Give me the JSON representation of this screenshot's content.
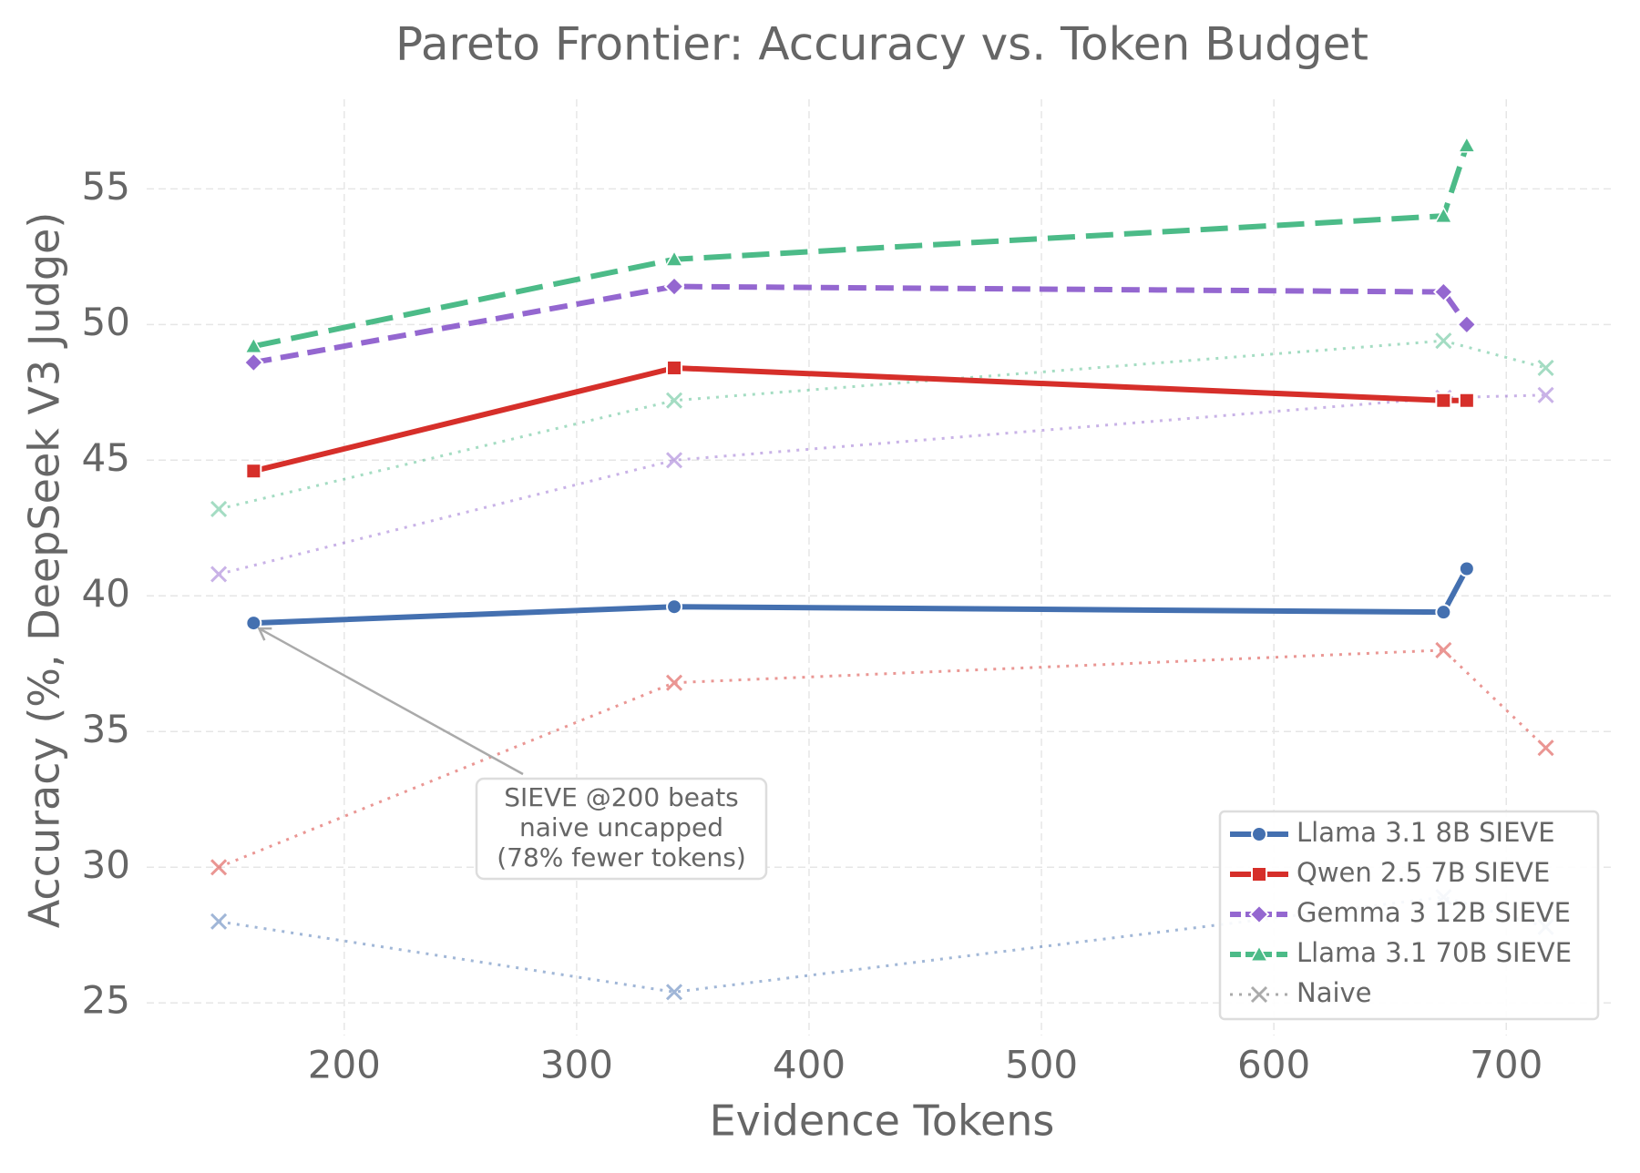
{
  "chart_data": {
    "type": "line",
    "title": "Pareto Frontier: Accuracy vs. Token Budget",
    "x_label": "Evidence Tokens",
    "y_label": "Accuracy (%, DeepSeek V3 Judge)",
    "xlim": [
      115,
      745
    ],
    "ylim": [
      23.8,
      58.3
    ],
    "xticks": [
      200,
      300,
      400,
      500,
      600,
      700
    ],
    "yticks": [
      25,
      30,
      35,
      40,
      45,
      50,
      55
    ],
    "grid": true,
    "legend_loc": "lower right",
    "x": [
      161,
      342,
      673,
      683
    ],
    "series": [
      {
        "name": "Llama 3.1 8B SIEVE",
        "color": "#4470b0",
        "linestyle": "solid",
        "marker": "o",
        "values": [
          39.0,
          39.6,
          39.4,
          41.0
        ]
      },
      {
        "name": "Qwen 2.5 7B SIEVE",
        "color": "#d62f2a",
        "linestyle": "solid",
        "marker": "s",
        "values": [
          44.6,
          48.4,
          47.2,
          47.2
        ]
      },
      {
        "name": "Gemma 3 12B SIEVE",
        "color": "#9467d0",
        "linestyle": "dashed",
        "marker": "D",
        "values": [
          48.6,
          51.4,
          51.2,
          50.0
        ]
      },
      {
        "name": "Llama 3.1 70B SIEVE",
        "color": "#4cbb88",
        "linestyle": "longdash",
        "marker": "^",
        "values": [
          49.2,
          52.4,
          54.0,
          56.6
        ]
      }
    ],
    "naive": {
      "name": "Naive",
      "legend_color": "#aaaaaa",
      "linestyle": "dotted",
      "marker": "x",
      "x": [
        146,
        342,
        673,
        717
      ],
      "series": [
        {
          "color": "#4470b0",
          "values": [
            28.0,
            25.4,
            28.9,
            27.8
          ]
        },
        {
          "color": "#d62f2a",
          "values": [
            30.0,
            36.8,
            38.0,
            34.4
          ]
        },
        {
          "color": "#9467d0",
          "values": [
            40.8,
            45.0,
            47.3,
            47.4
          ]
        },
        {
          "color": "#4cbb88",
          "values": [
            43.2,
            47.2,
            49.4,
            48.4
          ]
        }
      ]
    },
    "annotation": {
      "lines": [
        "SIEVE @200 beats",
        "naive uncapped",
        "(78% fewer tokens)"
      ],
      "x": 161,
      "y": 39.0
    }
  }
}
